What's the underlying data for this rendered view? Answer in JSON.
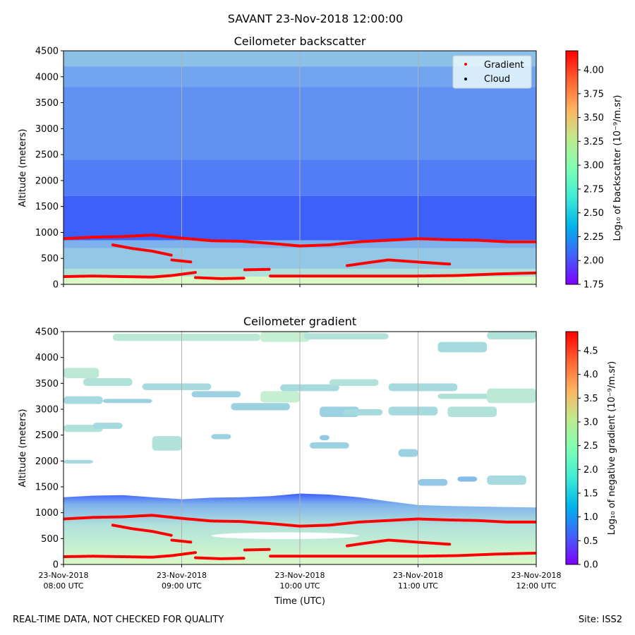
{
  "figure": {
    "suptitle": "SAVANT 23-Nov-2018 12:00:00",
    "footer_left": "REAL-TIME DATA, NOT CHECKED FOR QUALITY",
    "footer_right": "Site: ISS2"
  },
  "chart_data": [
    {
      "type": "heatmap",
      "title": "Ceilometer backscatter",
      "xlabel": "",
      "ylabel": "Altitude (meters)",
      "xlim": [
        "2018-11-23 08:00",
        "2018-11-23 12:00"
      ],
      "ylim": [
        0,
        4500
      ],
      "y_ticks": [
        0,
        500,
        1000,
        1500,
        2000,
        2500,
        3000,
        3500,
        4000,
        4500
      ],
      "x_ticks": [
        "2018-11-23 08:00",
        "2018-11-23 09:00",
        "2018-11-23 10:00",
        "2018-11-23 11:00",
        "2018-11-23 12:00"
      ],
      "x_tick_labels": [],
      "grid": "vertical lines at hourly ticks",
      "colormap": "rainbow",
      "colorbar": {
        "label": "Log₁₀ of backscatter (10⁻⁹/m.sr)",
        "range": [
          1.75,
          4.2
        ],
        "ticks": [
          "1.75",
          "2.00",
          "2.25",
          "2.50",
          "2.75",
          "3.00",
          "3.25",
          "3.50",
          "3.75",
          "4.00"
        ]
      },
      "legend": {
        "placement": "top-right",
        "entries": [
          {
            "label": "Gradient",
            "color": "#ff0000"
          },
          {
            "label": "Cloud",
            "color": "#000000"
          }
        ]
      },
      "field_levels": [
        {
          "from": 0,
          "to": 150,
          "value": 2.8
        },
        {
          "from": 150,
          "to": 300,
          "value": 2.6
        },
        {
          "from": 300,
          "to": 700,
          "value": 2.45
        },
        {
          "from": 700,
          "to": 850,
          "value": 2.35
        },
        {
          "from": 850,
          "to": 1700,
          "value": 2.05
        },
        {
          "from": 1700,
          "to": 2400,
          "value": 2.15
        },
        {
          "from": 2400,
          "to": 3800,
          "value": 2.22
        },
        {
          "from": 3800,
          "to": 4200,
          "value": 2.3
        },
        {
          "from": 4200,
          "to": 4500,
          "value": 2.42
        }
      ],
      "series": [
        {
          "name": "Gradient",
          "segments": [
            {
              "t": [
                "08:00",
                "08:15",
                "08:30",
                "08:45",
                "09:00",
                "09:15",
                "09:30",
                "09:45",
                "10:00",
                "10:15",
                "10:30",
                "10:45",
                "11:00",
                "11:15",
                "11:30",
                "11:45",
                "12:00"
              ],
              "alt": [
                880,
                910,
                920,
                950,
                890,
                840,
                830,
                790,
                740,
                760,
                820,
                850,
                880,
                860,
                850,
                820,
                820
              ]
            },
            {
              "t": [
                "08:25",
                "08:35",
                "08:45",
                "08:55"
              ],
              "alt": [
                760,
                690,
                640,
                560
              ]
            },
            {
              "t": [
                "08:55",
                "09:05"
              ],
              "alt": [
                470,
                430
              ]
            },
            {
              "t": [
                "08:00",
                "08:15",
                "08:30",
                "08:45",
                "08:55",
                "09:07"
              ],
              "alt": [
                150,
                160,
                150,
                140,
                170,
                230
              ]
            },
            {
              "t": [
                "09:07",
                "09:20",
                "09:32"
              ],
              "alt": [
                130,
                110,
                120
              ]
            },
            {
              "t": [
                "09:32",
                "09:45"
              ],
              "alt": [
                280,
                290
              ]
            },
            {
              "t": [
                "09:45",
                "10:15",
                "10:40",
                "11:00",
                "11:20",
                "11:40",
                "12:00"
              ],
              "alt": [
                160,
                160,
                160,
                160,
                170,
                200,
                220
              ]
            },
            {
              "t": [
                "10:24",
                "10:35",
                "10:45",
                "11:00",
                "11:16"
              ],
              "alt": [
                360,
                420,
                470,
                430,
                390
              ]
            }
          ]
        },
        {
          "name": "Cloud",
          "segments": []
        }
      ]
    },
    {
      "type": "heatmap",
      "title": "Ceilometer gradient",
      "xlabel": "Time (UTC)",
      "ylabel": "Altitude (meters)",
      "xlim": [
        "2018-11-23 08:00",
        "2018-11-23 12:00"
      ],
      "ylim": [
        0,
        4500
      ],
      "y_ticks": [
        0,
        500,
        1000,
        1500,
        2000,
        2500,
        3000,
        3500,
        4000,
        4500
      ],
      "x_tick_labels": [
        [
          "23-Nov-2018",
          "08:00 UTC"
        ],
        [
          "23-Nov-2018",
          "09:00 UTC"
        ],
        [
          "23-Nov-2018",
          "10:00 UTC"
        ],
        [
          "23-Nov-2018",
          "11:00 UTC"
        ],
        [
          "23-Nov-2018",
          "12:00 UTC"
        ]
      ],
      "grid": "vertical lines at hourly ticks",
      "colormap": "rainbow",
      "colorbar": {
        "label": "Log₁₀ of negative gradient (10⁻⁹/m.sr)",
        "range": [
          0,
          4.9
        ],
        "ticks": [
          "0.0",
          "0.5",
          "1.0",
          "1.5",
          "2.0",
          "2.5",
          "3.0",
          "3.5",
          "4.0",
          "4.5"
        ]
      },
      "boundary_layer": {
        "top_alt": [
          1300,
          1330,
          1340,
          1300,
          1260,
          1290,
          1300,
          1320,
          1370,
          1350,
          1300,
          1220,
          1150,
          1130,
          1120,
          1110,
          1100
        ]
      },
      "gap": {
        "t_range": [
          "09:15",
          "10:30"
        ],
        "alt_range": [
          490,
          620
        ]
      },
      "cloud_patches": [
        {
          "t": [
            "08:25",
            "09:40"
          ],
          "alt": [
            4320,
            4460
          ],
          "value": 1.8
        },
        {
          "t": [
            "09:40",
            "10:05"
          ],
          "alt": [
            4300,
            4500
          ],
          "value": 1.9
        },
        {
          "t": [
            "10:02",
            "10:45"
          ],
          "alt": [
            4350,
            4470
          ],
          "value": 1.7
        },
        {
          "t": [
            "11:10",
            "11:35"
          ],
          "alt": [
            4100,
            4300
          ],
          "value": 1.6
        },
        {
          "t": [
            "11:35",
            "12:00"
          ],
          "alt": [
            4350,
            4500
          ],
          "value": 1.7
        },
        {
          "t": [
            "08:00",
            "08:18"
          ],
          "alt": [
            3600,
            3800
          ],
          "value": 1.8
        },
        {
          "t": [
            "08:10",
            "08:35"
          ],
          "alt": [
            3450,
            3600
          ],
          "value": 1.7
        },
        {
          "t": [
            "08:40",
            "09:15"
          ],
          "alt": [
            3370,
            3500
          ],
          "value": 1.6
        },
        {
          "t": [
            "09:05",
            "09:30"
          ],
          "alt": [
            3230,
            3350
          ],
          "value": 1.5
        },
        {
          "t": [
            "08:00",
            "08:20"
          ],
          "alt": [
            3100,
            3250
          ],
          "value": 1.6
        },
        {
          "t": [
            "08:20",
            "08:45"
          ],
          "alt": [
            3120,
            3200
          ],
          "value": 1.5
        },
        {
          "t": [
            "09:40",
            "10:00"
          ],
          "alt": [
            3130,
            3350
          ],
          "value": 1.9
        },
        {
          "t": [
            "09:50",
            "10:20"
          ],
          "alt": [
            3350,
            3480
          ],
          "value": 1.6
        },
        {
          "t": [
            "10:15",
            "10:40"
          ],
          "alt": [
            3450,
            3580
          ],
          "value": 1.7
        },
        {
          "t": [
            "10:45",
            "11:20"
          ],
          "alt": [
            3350,
            3500
          ],
          "value": 1.6
        },
        {
          "t": [
            "11:10",
            "11:45"
          ],
          "alt": [
            3200,
            3300
          ],
          "value": 1.7
        },
        {
          "t": [
            "11:35",
            "12:00"
          ],
          "alt": [
            3120,
            3400
          ],
          "value": 1.8
        },
        {
          "t": [
            "10:10",
            "10:30"
          ],
          "alt": [
            2850,
            3050
          ],
          "value": 1.5
        },
        {
          "t": [
            "10:22",
            "10:42"
          ],
          "alt": [
            2880,
            3000
          ],
          "value": 1.6
        },
        {
          "t": [
            "10:45",
            "11:10"
          ],
          "alt": [
            2880,
            3050
          ],
          "value": 1.6
        },
        {
          "t": [
            "11:15",
            "11:40"
          ],
          "alt": [
            2850,
            3050
          ],
          "value": 1.7
        },
        {
          "t": [
            "09:25",
            "09:55"
          ],
          "alt": [
            2980,
            3120
          ],
          "value": 1.5
        },
        {
          "t": [
            "08:00",
            "08:20"
          ],
          "alt": [
            2560,
            2700
          ],
          "value": 1.7
        },
        {
          "t": [
            "08:15",
            "08:30"
          ],
          "alt": [
            2620,
            2740
          ],
          "value": 1.6
        },
        {
          "t": [
            "08:45",
            "09:00"
          ],
          "alt": [
            2200,
            2480
          ],
          "value": 1.7
        },
        {
          "t": [
            "09:15",
            "09:25"
          ],
          "alt": [
            2420,
            2520
          ],
          "value": 1.5
        },
        {
          "t": [
            "10:05",
            "10:25"
          ],
          "alt": [
            2240,
            2360
          ],
          "value": 1.5
        },
        {
          "t": [
            "10:50",
            "11:00"
          ],
          "alt": [
            2080,
            2230
          ],
          "value": 1.5
        },
        {
          "t": [
            "10:10",
            "10:15"
          ],
          "alt": [
            2400,
            2500
          ],
          "value": 1.4
        },
        {
          "t": [
            "08:00",
            "08:15"
          ],
          "alt": [
            1950,
            2020
          ],
          "value": 1.6
        },
        {
          "t": [
            "11:00",
            "11:15"
          ],
          "alt": [
            1520,
            1650
          ],
          "value": 1.4
        },
        {
          "t": [
            "11:20",
            "11:30"
          ],
          "alt": [
            1600,
            1700
          ],
          "value": 1.3
        },
        {
          "t": [
            "11:35",
            "11:55"
          ],
          "alt": [
            1540,
            1720
          ],
          "value": 1.6
        }
      ],
      "series": [
        {
          "name": "Gradient",
          "segments": [
            {
              "t": [
                "08:00",
                "08:15",
                "08:30",
                "08:45",
                "09:00",
                "09:15",
                "09:30",
                "09:45",
                "10:00",
                "10:15",
                "10:30",
                "10:45",
                "11:00",
                "11:15",
                "11:30",
                "11:45",
                "12:00"
              ],
              "alt": [
                880,
                910,
                920,
                950,
                890,
                840,
                830,
                790,
                740,
                760,
                820,
                850,
                880,
                860,
                850,
                820,
                820
              ]
            },
            {
              "t": [
                "08:25",
                "08:35",
                "08:45",
                "08:55"
              ],
              "alt": [
                760,
                690,
                640,
                560
              ]
            },
            {
              "t": [
                "08:55",
                "09:05"
              ],
              "alt": [
                470,
                430
              ]
            },
            {
              "t": [
                "08:00",
                "08:15",
                "08:30",
                "08:45",
                "08:55",
                "09:07"
              ],
              "alt": [
                150,
                160,
                150,
                140,
                170,
                230
              ]
            },
            {
              "t": [
                "09:07",
                "09:20",
                "09:32"
              ],
              "alt": [
                130,
                110,
                120
              ]
            },
            {
              "t": [
                "09:32",
                "09:45"
              ],
              "alt": [
                280,
                290
              ]
            },
            {
              "t": [
                "09:45",
                "10:15",
                "10:40",
                "11:00",
                "11:20",
                "11:40",
                "12:00"
              ],
              "alt": [
                160,
                160,
                160,
                160,
                170,
                200,
                220
              ]
            },
            {
              "t": [
                "10:24",
                "10:35",
                "10:45",
                "11:00",
                "11:16"
              ],
              "alt": [
                360,
                420,
                470,
                430,
                390
              ]
            }
          ]
        }
      ]
    }
  ]
}
